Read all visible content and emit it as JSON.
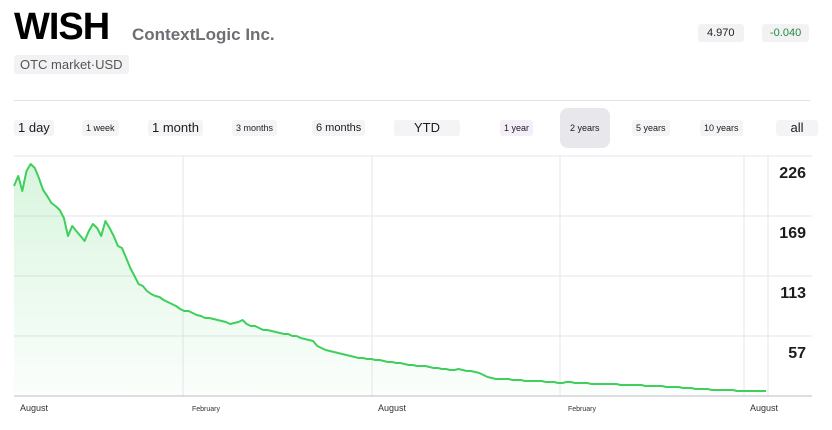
{
  "header": {
    "ticker": "WISH",
    "company": "ContextLogic Inc.",
    "market": "OTC market·USD",
    "price": "4.970",
    "change": "-0.040"
  },
  "colors": {
    "line": "#3ecf5c",
    "change": "#1f8a3a"
  },
  "ranges": [
    {
      "label": "1 day"
    },
    {
      "label": "1 week"
    },
    {
      "label": "1 month"
    },
    {
      "label": "3 months"
    },
    {
      "label": "6 months"
    },
    {
      "label": "YTD"
    },
    {
      "label": "1 year"
    },
    {
      "label": "2 years",
      "selected": true
    },
    {
      "label": "5 years"
    },
    {
      "label": "10 years"
    },
    {
      "label": "all"
    }
  ],
  "chart_data": {
    "type": "line",
    "title": "",
    "xlabel": "",
    "ylabel": "",
    "ylim": [
      0,
      240
    ],
    "y_ticks": [
      226,
      169,
      113,
      57
    ],
    "x_tick_labels": [
      "August",
      "February",
      "August",
      "February",
      "August"
    ],
    "grid": true,
    "series": [
      {
        "values": [
          210,
          220,
          205,
          225,
          232,
          228,
          218,
          206,
          200,
          193,
          190,
          186,
          178,
          160,
          170,
          165,
          160,
          155,
          165,
          172,
          168,
          160,
          175,
          168,
          160,
          150,
          148,
          138,
          128,
          120,
          112,
          110,
          105,
          102,
          100,
          99,
          96,
          94,
          92,
          90,
          87,
          85,
          85,
          83,
          81,
          80,
          78,
          78,
          77,
          76,
          75,
          74,
          72,
          73,
          74,
          76,
          72,
          70,
          70,
          68,
          66,
          66,
          65,
          64,
          63,
          62,
          62,
          60,
          60,
          58,
          57,
          56,
          55,
          50,
          48,
          46,
          45,
          44,
          43,
          42,
          41,
          40,
          39,
          38,
          38,
          37,
          37,
          36,
          36,
          35,
          34,
          34,
          33,
          33,
          32,
          31,
          31,
          30,
          30,
          30,
          29,
          28,
          28,
          27,
          27,
          26,
          26,
          27,
          26,
          25,
          25,
          24,
          23,
          21,
          19,
          18,
          17,
          17,
          17,
          17,
          16,
          16,
          16,
          15,
          15,
          15,
          15,
          15,
          14,
          14,
          14,
          13,
          13,
          14,
          14,
          13,
          13,
          13,
          13,
          12,
          12,
          12,
          12,
          12,
          12,
          12,
          11,
          11,
          11,
          11,
          11,
          11,
          10,
          10,
          10,
          10,
          10,
          9,
          9,
          9,
          9,
          8,
          8,
          8,
          7,
          7,
          7,
          7,
          6,
          6,
          6,
          6,
          6,
          6,
          5,
          5,
          5,
          5,
          5,
          5,
          5,
          5
        ]
      }
    ]
  }
}
